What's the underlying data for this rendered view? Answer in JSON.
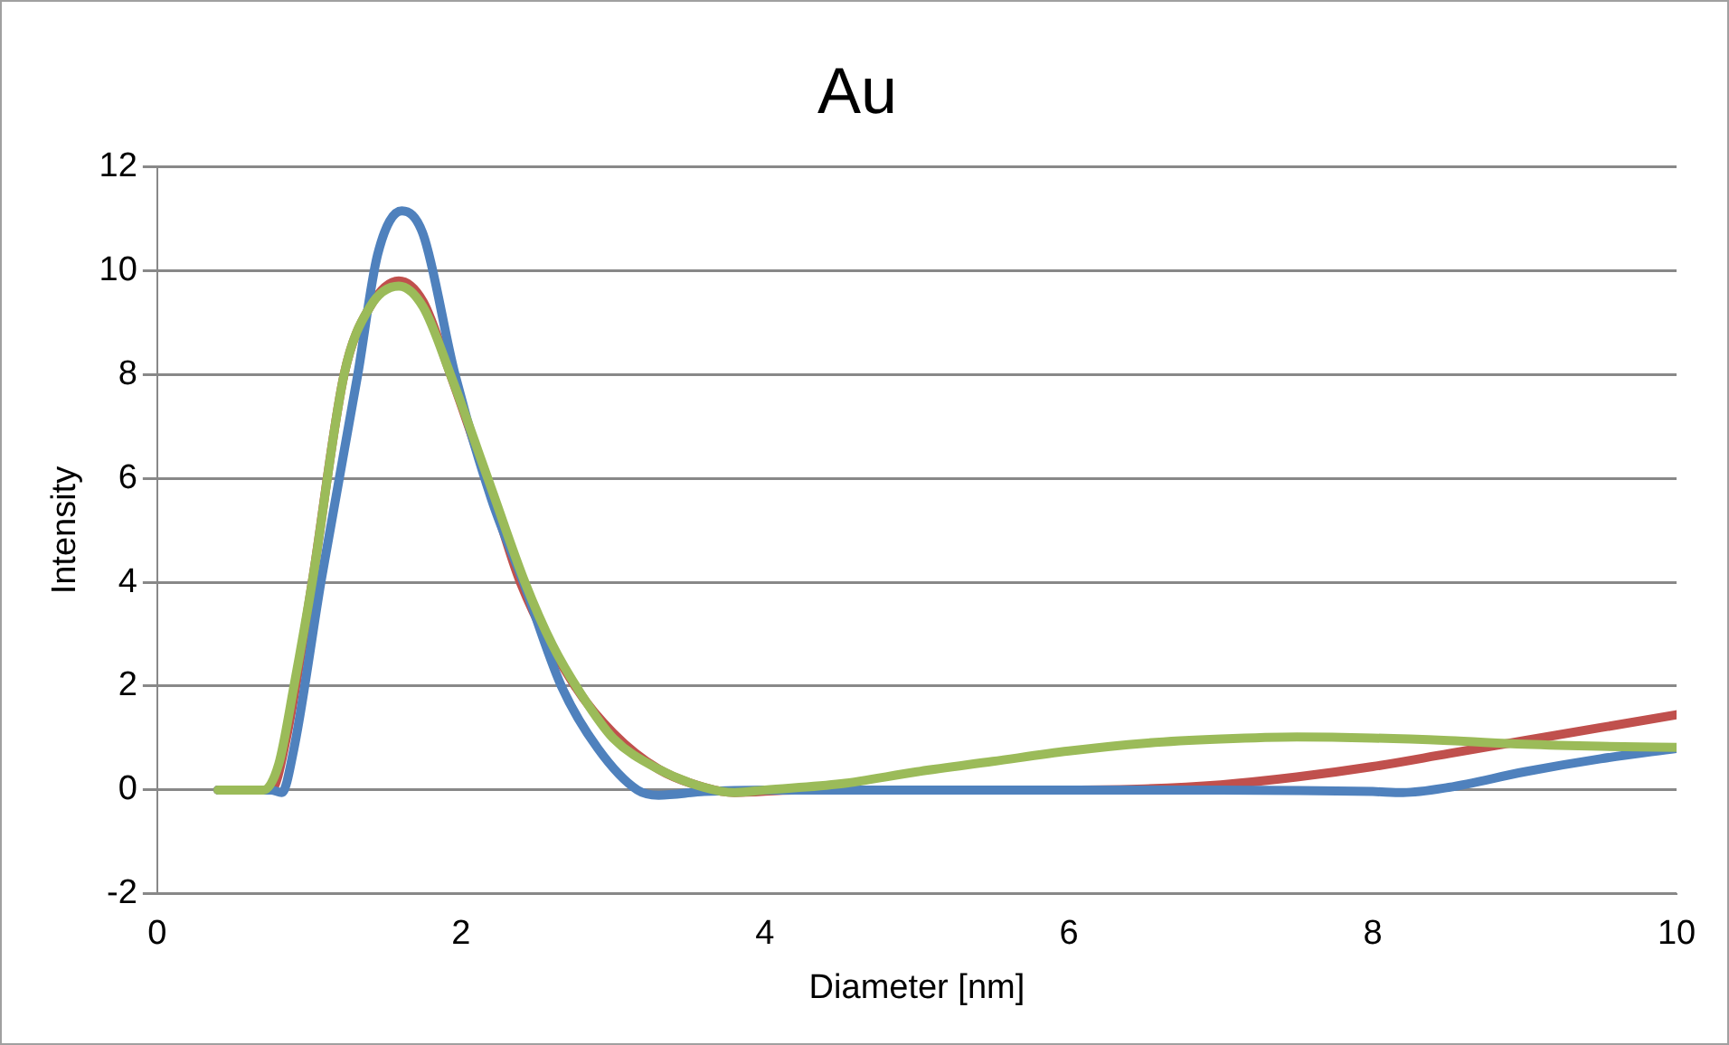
{
  "chart_data": {
    "type": "line",
    "title": "Au",
    "xlabel": "Diameter [nm]",
    "ylabel": "Intensity",
    "xlim": [
      0,
      10
    ],
    "xticks": [
      0,
      2,
      4,
      6,
      8,
      10
    ],
    "ylim": [
      -2,
      12
    ],
    "yticks": [
      -2,
      0,
      2,
      4,
      6,
      8,
      10,
      12
    ],
    "grid": "y",
    "legend": false,
    "marker": "none",
    "line_style": "solid",
    "series": [
      {
        "color": "#9bbb59",
        "x": [
          0.4,
          0.7,
          0.8,
          0.9,
          1.02,
          1.23,
          1.4,
          1.59,
          1.75,
          1.93,
          2.2,
          2.42,
          2.6,
          2.8,
          3.0,
          3.3,
          3.6,
          3.8,
          4.0,
          4.5,
          5.0,
          5.5,
          6.0,
          6.5,
          7.0,
          7.5,
          8.0,
          8.5,
          9.0,
          9.5,
          10.0
        ],
        "values": [
          0,
          0,
          0.5,
          2,
          4,
          8,
          9.3,
          9.7,
          9.3,
          8,
          5.8,
          4,
          2.8,
          1.8,
          1.0,
          0.4,
          0.05,
          -0.05,
          0,
          0.12,
          0.35,
          0.55,
          0.75,
          0.9,
          0.98,
          1.02,
          1.0,
          0.95,
          0.88,
          0.84,
          0.82
        ]
      },
      {
        "color": "#4f81bd",
        "x": [
          0.4,
          0.75,
          0.82,
          0.9,
          1.08,
          1.32,
          1.45,
          1.61,
          1.75,
          1.96,
          2.2,
          2.41,
          2.66,
          2.9,
          3.16,
          3.3,
          3.6,
          4.0,
          5.0,
          6.0,
          7.0,
          8.0,
          8.2,
          8.5,
          9.0,
          9.5,
          10.0
        ],
        "values": [
          0,
          0,
          -0.05,
          0.8,
          4.05,
          8,
          10.3,
          11.15,
          10.7,
          8,
          5.6,
          4,
          2,
          0.8,
          0,
          -0.1,
          -0.03,
          0,
          0,
          0,
          0,
          -0.03,
          -0.05,
          0.05,
          0.35,
          0.6,
          0.8
        ]
      },
      {
        "color": "#c0504d",
        "x": [
          0.4,
          0.75,
          0.85,
          1.02,
          1.23,
          1.4,
          1.59,
          1.75,
          1.93,
          2.2,
          2.39,
          2.75,
          3.0,
          3.3,
          3.6,
          3.8,
          4.2,
          5.0,
          6.0,
          6.5,
          7.0,
          7.5,
          8.0,
          8.5,
          9.0,
          9.5,
          10.0
        ],
        "values": [
          0,
          0,
          1,
          4,
          8,
          9.3,
          9.8,
          9.4,
          8,
          5.7,
          4,
          2,
          1.1,
          0.4,
          0.05,
          -0.05,
          0,
          0,
          0,
          0.02,
          0.1,
          0.25,
          0.45,
          0.7,
          0.95,
          1.2,
          1.45
        ]
      }
    ]
  }
}
